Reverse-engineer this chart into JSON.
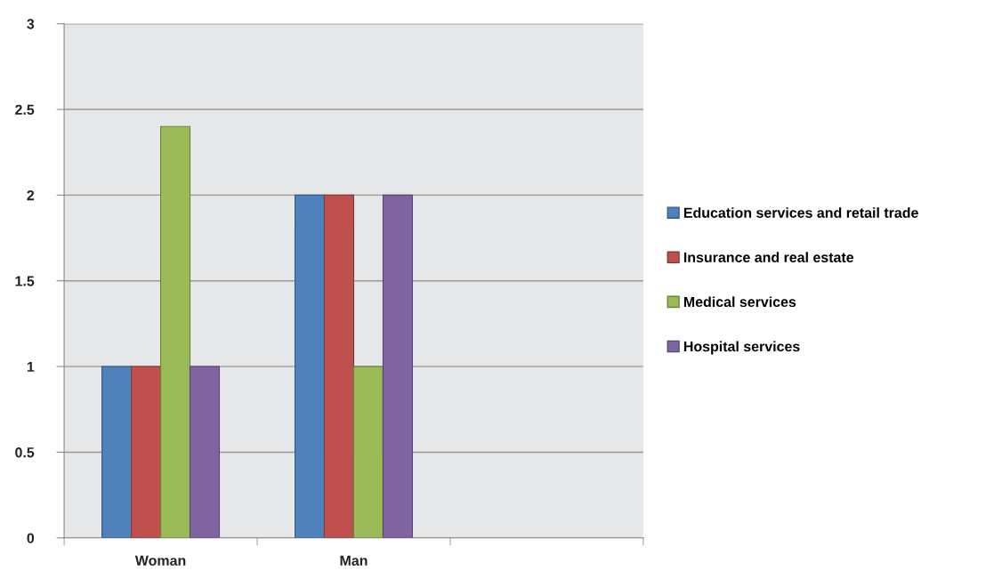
{
  "chart_data": {
    "type": "bar",
    "categories": [
      "Woman",
      "Man",
      null
    ],
    "series": [
      {
        "name": "Education services and retail trade",
        "color": "#4f81bd",
        "values": [
          1,
          2,
          null
        ]
      },
      {
        "name": "Insurance and real estate",
        "color": "#c0504d",
        "values": [
          1,
          2,
          null
        ]
      },
      {
        "name": "Medical services",
        "color": "#9bbb59",
        "values": [
          2.4,
          1,
          null
        ]
      },
      {
        "name": "Hospital services",
        "color": "#8064a2",
        "values": [
          1,
          2,
          null
        ]
      }
    ],
    "ylim": [
      0,
      3
    ],
    "yticks": [
      0,
      0.5,
      1,
      1.5,
      2,
      2.5,
      3
    ],
    "grid": "y",
    "legend": "right"
  }
}
